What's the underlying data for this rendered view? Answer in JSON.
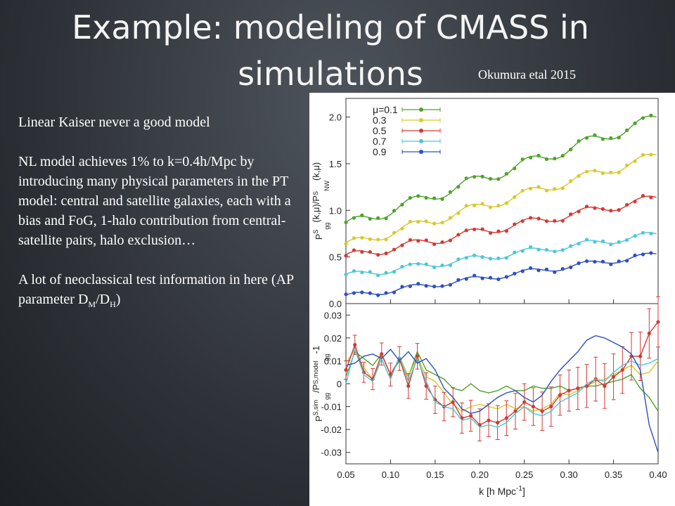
{
  "slide": {
    "title_line1": "Example: modeling of CMASS in",
    "title_line2": "simulations",
    "citation": "Okumura etal  2015",
    "text": {
      "para1": "Linear Kaiser never a good model",
      "para2": "NL model achieves 1% to k=0.4h/Mpc by introducing many physical parameters in the PT model: central and satellite galaxies, each with a bias and FoG, 1-halo contribution from central-satellite pairs, halo exclusion…",
      "para3_prefix": "A lot of neoclassical test information in here (AP parameter D",
      "para3_sub1": "M",
      "para3_mid": "/D",
      "para3_sub2": "H",
      "para3_suffix": ")"
    }
  },
  "chart_data": [
    {
      "type": "scatter",
      "panel": "top",
      "ylabel_main": "P",
      "ylabel_sup1": "S",
      "ylabel_sub1": "gg",
      "ylabel_mid": "(k,μ)/P",
      "ylabel_sup2": "S",
      "ylabel_sub2": "NW",
      "ylabel_end": "(k,μ)",
      "xlim": [
        0.05,
        0.4
      ],
      "ylim": [
        0,
        2.2
      ],
      "yticks": [
        "0.0",
        "0.5",
        "1.0",
        "1.5",
        "2.0"
      ],
      "legend_position": "top-left",
      "series": [
        {
          "name": "μ=0.1",
          "color": "#4ea32a",
          "base": 1.0,
          "k_slope": 3.3,
          "amp": 0.06
        },
        {
          "name": "0.3",
          "color": "#d9c92a",
          "base": 0.76,
          "k_slope": 2.5,
          "amp": 0.05
        },
        {
          "name": "0.5",
          "color": "#d23a33",
          "base": 0.59,
          "k_slope": 1.5,
          "amp": 0.045
        },
        {
          "name": "0.7",
          "color": "#4cc6d8",
          "base": 0.36,
          "k_slope": 0.98,
          "amp": 0.035
        },
        {
          "name": "0.9",
          "color": "#2c4fc4",
          "base": 0.14,
          "k_slope": 0.92,
          "amp": 0.03
        }
      ]
    },
    {
      "type": "line",
      "panel": "bottom",
      "ylabel_main": "P",
      "ylabel_sup1": "S,sim",
      "ylabel_sub1": "gg",
      "ylabel_mid": "/P",
      "ylabel_sup2": "S,model",
      "ylabel_sub2": "gg",
      "ylabel_end": "-1",
      "xlabel": "k [h Mpc",
      "xlabel_sup": "-1",
      "xlabel_end": "]",
      "xlim": [
        0.05,
        0.4
      ],
      "ylim": [
        -0.035,
        0.035
      ],
      "xticks": [
        "0.05",
        "0.10",
        "0.15",
        "0.20",
        "0.25",
        "0.30",
        "0.35",
        "0.40"
      ],
      "yticks": [
        "-0.03",
        "-0.02",
        "-0.01",
        "0",
        "0.01",
        "0.02",
        "0.03"
      ],
      "k": [
        0.05,
        0.06,
        0.07,
        0.08,
        0.09,
        0.1,
        0.11,
        0.12,
        0.13,
        0.14,
        0.15,
        0.16,
        0.17,
        0.18,
        0.19,
        0.2,
        0.21,
        0.22,
        0.23,
        0.24,
        0.25,
        0.26,
        0.27,
        0.28,
        0.29,
        0.3,
        0.31,
        0.32,
        0.33,
        0.34,
        0.35,
        0.36,
        0.37,
        0.38,
        0.39,
        0.4
      ],
      "series": [
        {
          "name": "0.1",
          "color": "#4ea32a",
          "values": [
            0.003,
            0.014,
            0.011,
            0.008,
            0.013,
            0.004,
            0.01,
            0.003,
            0.014,
            0.006,
            0.004,
            0.002,
            -0.002,
            -0.003,
            0.0,
            -0.003,
            -0.004,
            -0.003,
            -0.001,
            -0.003,
            -0.003,
            -0.001,
            -0.002,
            -0.002,
            -0.001,
            -0.003,
            -0.002,
            -0.001,
            -0.001,
            0.0,
            0.001,
            0.002,
            0.004,
            -0.002,
            -0.006,
            -0.012
          ]
        },
        {
          "name": "0.3",
          "color": "#d9c92a",
          "values": [
            0.009,
            0.015,
            0.007,
            0.002,
            0.011,
            0.002,
            0.012,
            0.003,
            0.012,
            0.003,
            0.001,
            -0.004,
            -0.009,
            -0.012,
            -0.01,
            -0.009,
            -0.01,
            -0.011,
            -0.009,
            -0.011,
            -0.01,
            -0.012,
            -0.011,
            -0.009,
            -0.004,
            -0.005,
            -0.003,
            -0.001,
            0.001,
            0.002,
            0.004,
            0.006,
            0.008,
            0.004,
            0.005,
            0.01
          ]
        },
        {
          "name": "0.5",
          "color": "#d23a33",
          "errors": true,
          "values": [
            0.006,
            0.017,
            0.005,
            0.002,
            0.013,
            0.004,
            0.011,
            -0.001,
            0.012,
            -0.001,
            -0.007,
            -0.01,
            -0.008,
            -0.015,
            -0.014,
            -0.018,
            -0.016,
            -0.017,
            -0.015,
            -0.012,
            -0.008,
            -0.01,
            -0.012,
            -0.01,
            -0.005,
            -0.003,
            -0.002,
            -0.001,
            0.002,
            -0.001,
            0.003,
            0.006,
            0.012,
            0.012,
            0.022,
            0.027
          ]
        },
        {
          "name": "0.7",
          "color": "#4cc6d8",
          "values": [
            0.0,
            0.015,
            0.004,
            0.001,
            0.011,
            0.002,
            0.012,
            0.001,
            0.011,
            0.001,
            -0.008,
            -0.01,
            -0.011,
            -0.016,
            -0.015,
            -0.019,
            -0.018,
            -0.019,
            -0.017,
            -0.013,
            -0.01,
            -0.013,
            -0.014,
            -0.012,
            -0.008,
            -0.006,
            -0.004,
            0.0,
            0.002,
            0.001,
            0.005,
            0.008,
            0.01,
            0.008,
            0.009,
            0.011
          ]
        },
        {
          "name": "0.9",
          "color": "#2c4fc4",
          "values": [
            0.008,
            0.009,
            0.012,
            0.013,
            0.011,
            0.015,
            0.01,
            0.014,
            0.009,
            0.011,
            0.006,
            -0.002,
            -0.006,
            -0.011,
            -0.013,
            -0.012,
            -0.009,
            -0.006,
            -0.004,
            -0.003,
            -0.006,
            -0.008,
            -0.005,
            0.001,
            0.006,
            0.01,
            0.014,
            0.019,
            0.021,
            0.02,
            0.018,
            0.016,
            0.013,
            0.006,
            -0.018,
            -0.03
          ]
        }
      ]
    }
  ]
}
